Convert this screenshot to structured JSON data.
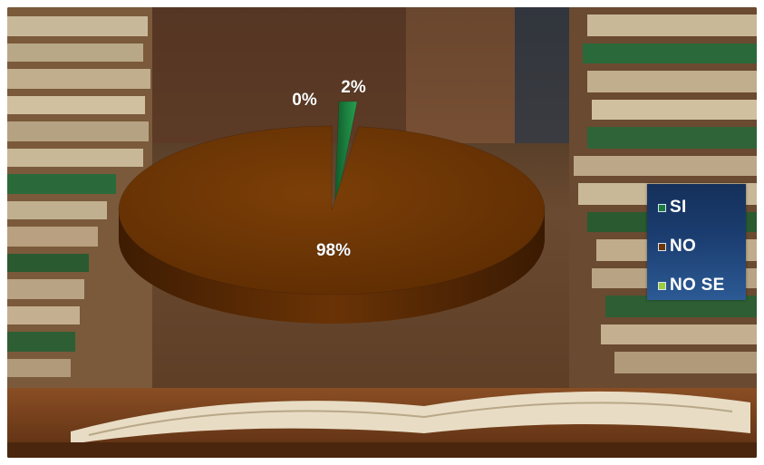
{
  "chart_data": {
    "type": "pie",
    "categories": [
      "SI",
      "NO",
      "NO SE"
    ],
    "values": [
      2,
      98,
      0
    ],
    "data_labels": [
      "2%",
      "98%",
      "0%"
    ],
    "colors": [
      "#1c7a3e",
      "#6e3605",
      "#9ccc3c"
    ],
    "legend_position": "right",
    "style": "3d-pie",
    "background": "photo of stacked books and open book"
  }
}
